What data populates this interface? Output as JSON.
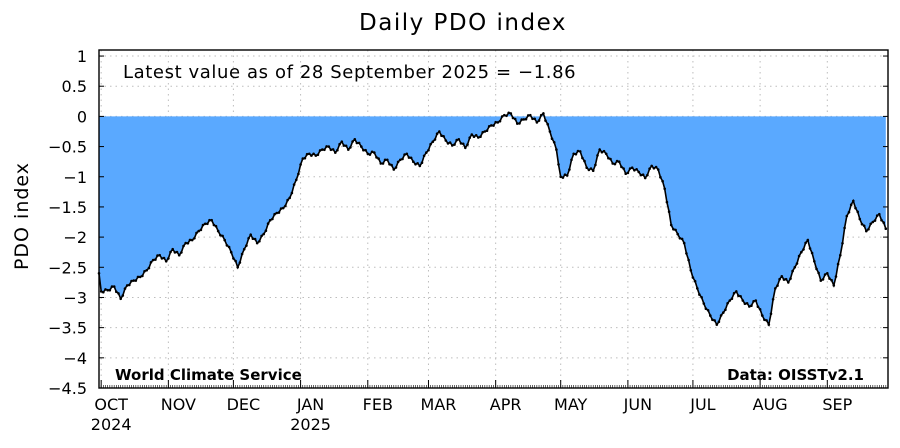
{
  "chart_data": {
    "type": "area",
    "title": "Daily PDO index",
    "ylabel": "PDO index",
    "xlabel": "",
    "ylim": [
      -4.5,
      1.1
    ],
    "yticks": [
      1,
      0.5,
      0,
      -0.5,
      -1,
      -1.5,
      -2,
      -2.5,
      -3,
      -3.5,
      -4,
      -4.5
    ],
    "ytick_labels": [
      "1",
      "0.5",
      "0",
      "−0.5",
      "−1",
      "−1.5",
      "−2",
      "−2.5",
      "−3",
      "−3.5",
      "−4",
      "−4.5"
    ],
    "x_start": "2024-09-30",
    "x_end": "2025-09-29",
    "months": [
      {
        "label": "OCT",
        "date": "2024-10-01",
        "year": "2024"
      },
      {
        "label": "NOV",
        "date": "2024-11-01"
      },
      {
        "label": "DEC",
        "date": "2024-12-01"
      },
      {
        "label": "JAN",
        "date": "2025-01-01",
        "year": "2025"
      },
      {
        "label": "FEB",
        "date": "2025-02-01"
      },
      {
        "label": "MAR",
        "date": "2025-03-01"
      },
      {
        "label": "APR",
        "date": "2025-04-01"
      },
      {
        "label": "MAY",
        "date": "2025-05-01"
      },
      {
        "label": "JUN",
        "date": "2025-06-01"
      },
      {
        "label": "JUL",
        "date": "2025-07-01"
      },
      {
        "label": "AUG",
        "date": "2025-08-01"
      },
      {
        "label": "SEP",
        "date": "2025-09-01"
      }
    ],
    "grid": true,
    "fill_color": "#5aa9ff",
    "line_color": "#000000",
    "series": [
      {
        "points": [
          [
            "2024-09-30",
            -2.6
          ],
          [
            "2024-10-01",
            -2.9
          ],
          [
            "2024-10-04",
            -2.88
          ],
          [
            "2024-10-07",
            -2.82
          ],
          [
            "2024-10-10",
            -3.02
          ],
          [
            "2024-10-13",
            -2.8
          ],
          [
            "2024-10-16",
            -2.72
          ],
          [
            "2024-10-19",
            -2.66
          ],
          [
            "2024-10-22",
            -2.55
          ],
          [
            "2024-10-25",
            -2.38
          ],
          [
            "2024-10-28",
            -2.3
          ],
          [
            "2024-10-31",
            -2.4
          ],
          [
            "2024-11-03",
            -2.2
          ],
          [
            "2024-11-06",
            -2.3
          ],
          [
            "2024-11-09",
            -2.1
          ],
          [
            "2024-11-12",
            -2.05
          ],
          [
            "2024-11-15",
            -1.9
          ],
          [
            "2024-11-18",
            -1.78
          ],
          [
            "2024-11-21",
            -1.72
          ],
          [
            "2024-11-24",
            -1.9
          ],
          [
            "2024-11-27",
            -2.05
          ],
          [
            "2024-11-30",
            -2.25
          ],
          [
            "2024-12-03",
            -2.5
          ],
          [
            "2024-12-06",
            -2.2
          ],
          [
            "2024-12-09",
            -1.96
          ],
          [
            "2024-12-12",
            -2.1
          ],
          [
            "2024-12-15",
            -1.95
          ],
          [
            "2024-12-18",
            -1.72
          ],
          [
            "2024-12-21",
            -1.6
          ],
          [
            "2024-12-24",
            -1.52
          ],
          [
            "2024-12-27",
            -1.35
          ],
          [
            "2024-12-30",
            -1.05
          ],
          [
            "2025-01-02",
            -0.7
          ],
          [
            "2025-01-05",
            -0.62
          ],
          [
            "2025-01-08",
            -0.65
          ],
          [
            "2025-01-11",
            -0.55
          ],
          [
            "2025-01-14",
            -0.5
          ],
          [
            "2025-01-17",
            -0.6
          ],
          [
            "2025-01-20",
            -0.42
          ],
          [
            "2025-01-23",
            -0.55
          ],
          [
            "2025-01-26",
            -0.38
          ],
          [
            "2025-01-29",
            -0.5
          ],
          [
            "2025-02-01",
            -0.62
          ],
          [
            "2025-02-04",
            -0.6
          ],
          [
            "2025-02-07",
            -0.78
          ],
          [
            "2025-02-10",
            -0.72
          ],
          [
            "2025-02-13",
            -0.88
          ],
          [
            "2025-02-16",
            -0.72
          ],
          [
            "2025-02-19",
            -0.62
          ],
          [
            "2025-02-22",
            -0.75
          ],
          [
            "2025-02-25",
            -0.82
          ],
          [
            "2025-02-28",
            -0.6
          ],
          [
            "2025-03-03",
            -0.42
          ],
          [
            "2025-03-06",
            -0.25
          ],
          [
            "2025-03-09",
            -0.4
          ],
          [
            "2025-03-12",
            -0.48
          ],
          [
            "2025-03-15",
            -0.38
          ],
          [
            "2025-03-18",
            -0.52
          ],
          [
            "2025-03-21",
            -0.3
          ],
          [
            "2025-03-24",
            -0.35
          ],
          [
            "2025-03-27",
            -0.25
          ],
          [
            "2025-03-30",
            -0.15
          ],
          [
            "2025-04-02",
            -0.1
          ],
          [
            "2025-04-05",
            0.02
          ],
          [
            "2025-04-08",
            0.05
          ],
          [
            "2025-04-11",
            -0.12
          ],
          [
            "2025-04-14",
            -0.05
          ],
          [
            "2025-04-17",
            0.02
          ],
          [
            "2025-04-20",
            -0.1
          ],
          [
            "2025-04-23",
            0.05
          ],
          [
            "2025-04-26",
            -0.25
          ],
          [
            "2025-04-29",
            -0.55
          ],
          [
            "2025-05-01",
            -1.0
          ],
          [
            "2025-05-04",
            -0.98
          ],
          [
            "2025-05-07",
            -0.62
          ],
          [
            "2025-05-10",
            -0.58
          ],
          [
            "2025-05-13",
            -0.85
          ],
          [
            "2025-05-16",
            -0.9
          ],
          [
            "2025-05-19",
            -0.55
          ],
          [
            "2025-05-22",
            -0.62
          ],
          [
            "2025-05-25",
            -0.78
          ],
          [
            "2025-05-28",
            -0.75
          ],
          [
            "2025-05-31",
            -0.95
          ],
          [
            "2025-06-03",
            -0.85
          ],
          [
            "2025-06-06",
            -0.92
          ],
          [
            "2025-06-09",
            -1.02
          ],
          [
            "2025-06-12",
            -0.82
          ],
          [
            "2025-06-15",
            -0.88
          ],
          [
            "2025-06-18",
            -1.2
          ],
          [
            "2025-06-21",
            -1.8
          ],
          [
            "2025-06-24",
            -1.95
          ],
          [
            "2025-06-27",
            -2.1
          ],
          [
            "2025-06-30",
            -2.55
          ],
          [
            "2025-07-03",
            -2.85
          ],
          [
            "2025-07-06",
            -3.1
          ],
          [
            "2025-07-09",
            -3.3
          ],
          [
            "2025-07-12",
            -3.45
          ],
          [
            "2025-07-15",
            -3.25
          ],
          [
            "2025-07-18",
            -3.05
          ],
          [
            "2025-07-21",
            -2.9
          ],
          [
            "2025-07-24",
            -3.05
          ],
          [
            "2025-07-27",
            -3.15
          ],
          [
            "2025-07-30",
            -3.05
          ],
          [
            "2025-08-02",
            -3.3
          ],
          [
            "2025-08-05",
            -3.45
          ],
          [
            "2025-08-08",
            -2.85
          ],
          [
            "2025-08-11",
            -2.65
          ],
          [
            "2025-08-14",
            -2.75
          ],
          [
            "2025-08-17",
            -2.5
          ],
          [
            "2025-08-20",
            -2.25
          ],
          [
            "2025-08-23",
            -2.05
          ],
          [
            "2025-08-26",
            -2.4
          ],
          [
            "2025-08-29",
            -2.72
          ],
          [
            "2025-09-01",
            -2.6
          ],
          [
            "2025-09-04",
            -2.8
          ],
          [
            "2025-09-07",
            -2.3
          ],
          [
            "2025-09-10",
            -1.65
          ],
          [
            "2025-09-13",
            -1.4
          ],
          [
            "2025-09-16",
            -1.7
          ],
          [
            "2025-09-19",
            -1.9
          ],
          [
            "2025-09-22",
            -1.75
          ],
          [
            "2025-09-25",
            -1.62
          ],
          [
            "2025-09-28",
            -1.86
          ]
        ]
      }
    ],
    "annotations": {
      "latest": "Latest value as of 28 September 2025 = −1.86",
      "credit_left": "World Climate Service",
      "credit_right": "Data: OISSTv2.1"
    }
  }
}
